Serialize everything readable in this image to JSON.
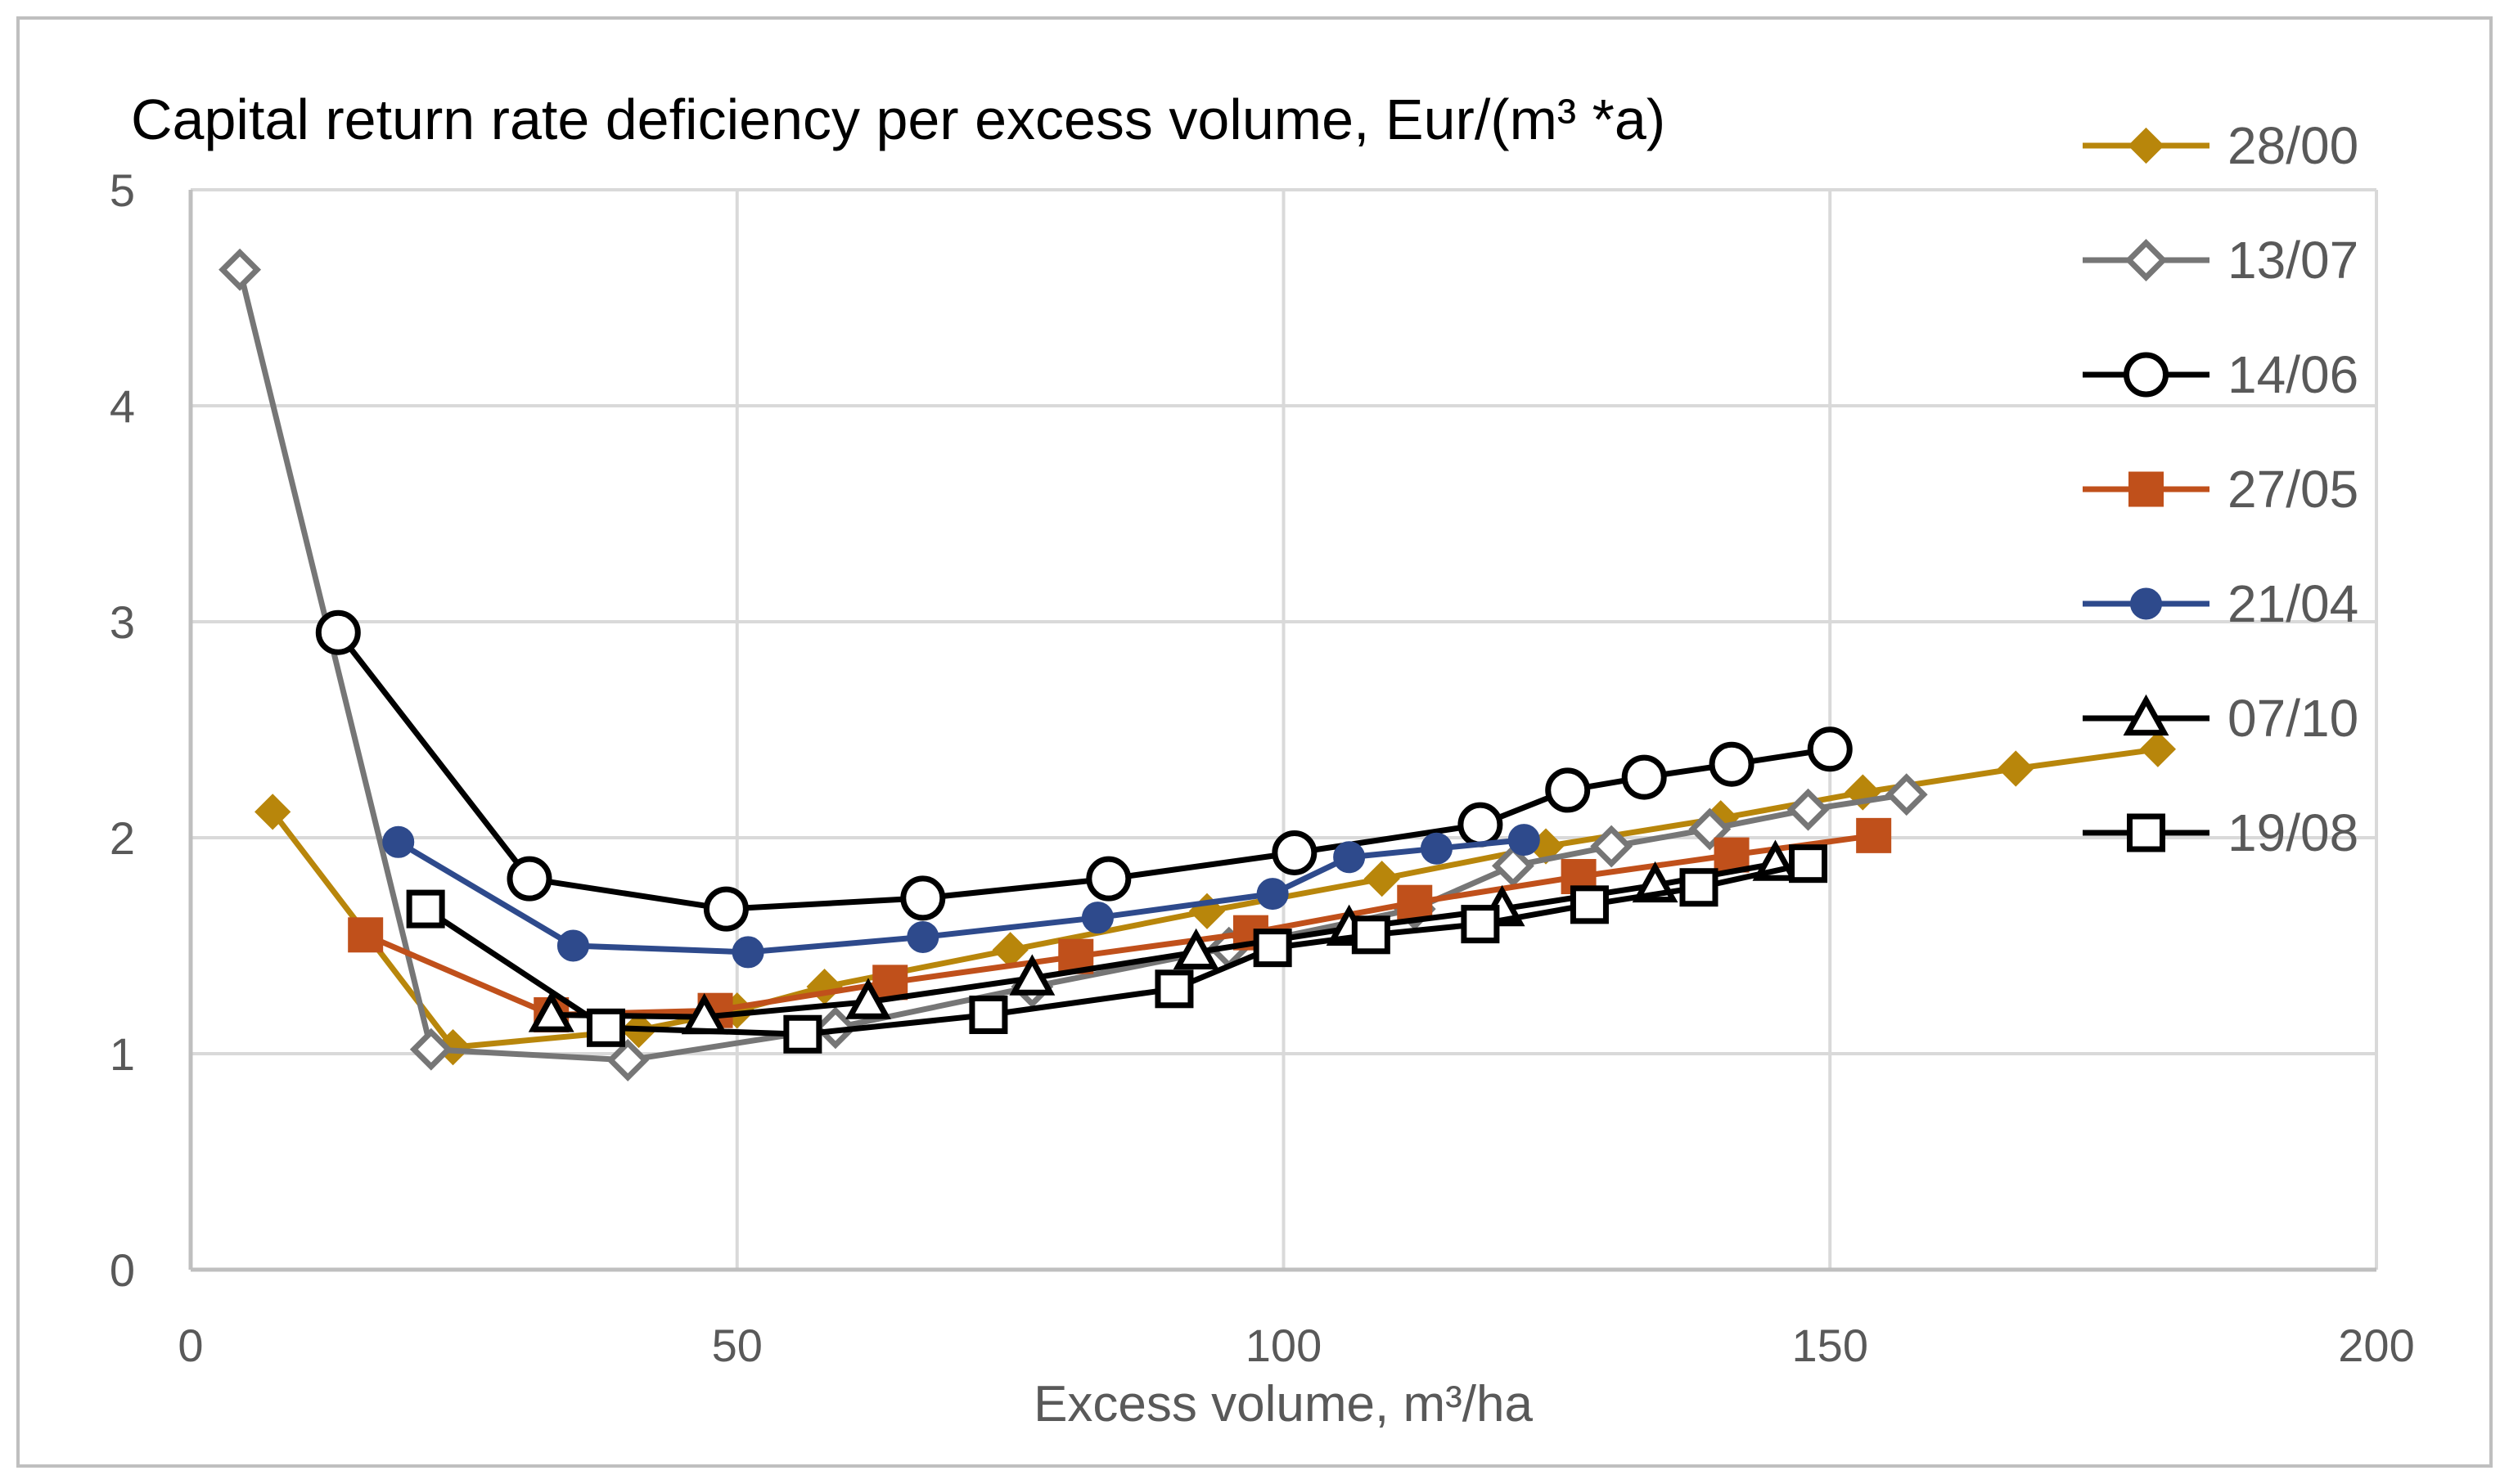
{
  "chart_data": {
    "type": "line",
    "title": "Capital return rate deficiency per excess volume,  Eur/(m³ *a)",
    "xlabel": "Excess volume, m³/ha",
    "ylabel": "",
    "xlim": [
      0,
      200
    ],
    "ylim": [
      0,
      5
    ],
    "x_ticks": [
      0,
      50,
      100,
      150,
      200
    ],
    "y_ticks": [
      0,
      1,
      2,
      3,
      4,
      5
    ],
    "x_tick_labels": [
      "0",
      "50",
      "100",
      "150",
      "200"
    ],
    "y_tick_labels": [
      "0",
      "1",
      "2",
      "3",
      "4",
      "5"
    ],
    "grid": true,
    "legend_position": "right",
    "series": [
      {
        "name": "28/00",
        "color": "#B8860B",
        "marker": "diamond-filled",
        "points": [
          [
            7.5,
            2.12
          ],
          [
            24,
            1.03
          ],
          [
            41,
            1.11
          ],
          [
            50,
            1.2
          ],
          [
            58,
            1.31
          ],
          [
            75,
            1.48
          ],
          [
            93,
            1.66
          ],
          [
            109,
            1.81
          ],
          [
            124,
            1.96
          ],
          [
            140,
            2.09
          ],
          [
            153,
            2.21
          ],
          [
            167,
            2.32
          ],
          [
            180,
            2.41
          ]
        ]
      },
      {
        "name": "13/07",
        "color": "#767676",
        "marker": "diamond-open",
        "points": [
          [
            4.5,
            4.63
          ],
          [
            22,
            1.02
          ],
          [
            40,
            0.97
          ],
          [
            59,
            1.12
          ],
          [
            77,
            1.31
          ],
          [
            95,
            1.49
          ],
          [
            112,
            1.67
          ],
          [
            121,
            1.87
          ],
          [
            130,
            1.96
          ],
          [
            139,
            2.04
          ],
          [
            148,
            2.13
          ],
          [
            157,
            2.2
          ]
        ]
      },
      {
        "name": "14/06",
        "color": "#000000",
        "marker": "circle-open",
        "points": [
          [
            13.5,
            2.95
          ],
          [
            31,
            1.81
          ],
          [
            49,
            1.67
          ],
          [
            67,
            1.72
          ],
          [
            84,
            1.81
          ],
          [
            101,
            1.93
          ],
          [
            118,
            2.06
          ],
          [
            126,
            2.22
          ],
          [
            133,
            2.28
          ],
          [
            141,
            2.34
          ],
          [
            150,
            2.41
          ]
        ]
      },
      {
        "name": "27/05",
        "color": "#C0501B",
        "marker": "square-filled",
        "points": [
          [
            16,
            1.55
          ],
          [
            33,
            1.18
          ],
          [
            48,
            1.2
          ],
          [
            64,
            1.33
          ],
          [
            81,
            1.45
          ],
          [
            97,
            1.56
          ],
          [
            112,
            1.7
          ],
          [
            127,
            1.82
          ],
          [
            141,
            1.92
          ],
          [
            154,
            2.01
          ]
        ]
      },
      {
        "name": "21/04",
        "color": "#2E4A8C",
        "marker": "circle-filled",
        "points": [
          [
            19,
            1.98
          ],
          [
            35,
            1.5
          ],
          [
            51,
            1.47
          ],
          [
            67,
            1.54
          ],
          [
            83,
            1.63
          ],
          [
            99,
            1.74
          ],
          [
            106,
            1.91
          ],
          [
            114,
            1.95
          ],
          [
            122,
            1.99
          ]
        ]
      },
      {
        "name": "07/10",
        "color": "#000000",
        "marker": "triangle-open",
        "points": [
          [
            33,
            1.18
          ],
          [
            47,
            1.17
          ],
          [
            62,
            1.24
          ],
          [
            77,
            1.35
          ],
          [
            92,
            1.47
          ],
          [
            106,
            1.58
          ],
          [
            120,
            1.67
          ],
          [
            134,
            1.78
          ],
          [
            145,
            1.88
          ]
        ]
      },
      {
        "name": "19/08",
        "color": "#000000",
        "marker": "square-open",
        "points": [
          [
            21.5,
            1.67
          ],
          [
            38,
            1.12
          ],
          [
            56,
            1.09
          ],
          [
            73,
            1.18
          ],
          [
            90,
            1.3
          ],
          [
            99,
            1.49
          ],
          [
            108,
            1.55
          ],
          [
            118,
            1.6
          ],
          [
            128,
            1.69
          ],
          [
            138,
            1.77
          ],
          [
            148,
            1.88
          ]
        ]
      }
    ]
  }
}
